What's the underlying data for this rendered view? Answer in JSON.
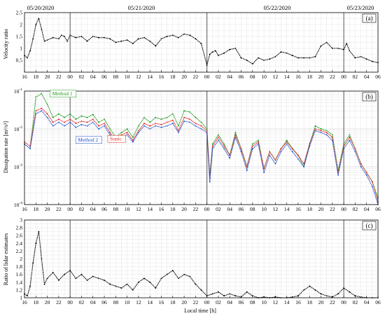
{
  "figure": {
    "dates": [
      "05/20/2020",
      "05/21/2020",
      "05/22/2020",
      "05/23/2020"
    ],
    "xlabel": "Local time [h]"
  },
  "chart_data": [
    {
      "type": "line",
      "panel_label": "(a)",
      "ylabel": "Velocity ratio",
      "ylim": [
        0,
        2.5
      ],
      "yticks": [
        0,
        0.5,
        1,
        1.5,
        2,
        2.5
      ],
      "ytick_labels": [
        "",
        "0.5",
        "1",
        "1.5",
        "2",
        "2.5"
      ],
      "xlim": [
        16,
        78
      ],
      "xticks_hours": [
        16,
        18,
        20,
        22,
        24,
        26,
        28,
        30,
        32,
        34,
        36,
        38,
        40,
        42,
        44,
        46,
        48,
        50,
        52,
        54,
        56,
        58,
        60,
        62,
        64,
        66,
        68,
        70,
        72,
        74,
        76,
        78
      ],
      "xtick_labels": [
        "16",
        "18",
        "20",
        "22",
        "00",
        "02",
        "04",
        "06",
        "08",
        "10",
        "12",
        "14",
        "16",
        "18",
        "20",
        "22",
        "00",
        "02",
        "04",
        "06",
        "08",
        "10",
        "12",
        "14",
        "16",
        "18",
        "20",
        "22",
        "00",
        "02",
        "04",
        "06"
      ],
      "day_lines_hours": [
        24,
        48,
        72
      ],
      "grid": true,
      "series": [
        {
          "color": "#000000",
          "x": [
            16,
            16.5,
            17,
            17.5,
            18,
            18.5,
            19,
            19.5,
            20,
            21,
            22,
            22.5,
            23,
            23.5,
            24,
            25,
            26,
            27,
            28,
            29,
            30,
            31,
            32,
            33,
            34,
            35,
            36,
            37,
            38,
            39,
            40,
            41,
            42,
            43,
            44,
            45,
            46,
            47,
            48,
            48.5,
            49,
            49.5,
            50,
            51,
            52,
            53,
            54,
            55,
            56,
            57,
            58,
            59,
            60,
            61,
            62,
            63,
            64,
            65,
            66,
            67,
            68,
            69,
            70,
            71,
            72,
            72.5,
            73,
            74,
            75,
            76,
            77,
            78
          ],
          "y": [
            0.7,
            0.6,
            0.9,
            1.4,
            2.0,
            2.25,
            1.8,
            1.3,
            1.35,
            1.45,
            1.4,
            1.55,
            1.5,
            1.3,
            1.55,
            1.45,
            1.5,
            1.3,
            1.5,
            1.45,
            1.45,
            1.4,
            1.25,
            1.3,
            1.35,
            1.2,
            1.4,
            1.45,
            1.3,
            1.1,
            1.4,
            1.5,
            1.55,
            1.45,
            1.6,
            1.55,
            1.4,
            1.2,
            0.3,
            0.75,
            0.85,
            0.9,
            0.7,
            0.8,
            0.95,
            1.0,
            0.6,
            0.5,
            0.35,
            0.6,
            0.5,
            0.55,
            0.65,
            0.85,
            0.8,
            0.7,
            0.6,
            0.6,
            0.6,
            0.65,
            1.1,
            1.25,
            1.0,
            1.0,
            0.95,
            1.2,
            0.9,
            0.6,
            0.65,
            0.55,
            0.45,
            0.4
          ]
        }
      ]
    },
    {
      "type": "line",
      "panel_label": "(b)",
      "ylabel": "Dissipation rate [m²/s³]",
      "yscale": "log",
      "ylim": [
        0.0001,
        0.1
      ],
      "ytick_exponents": [
        -4,
        -3,
        -2,
        -1
      ],
      "xlim": [
        16,
        78
      ],
      "day_lines_hours": [
        24,
        48,
        72
      ],
      "grid": true,
      "annotations": [
        {
          "text": "Method 1",
          "color": "#1a9a1a",
          "x": 20.5,
          "y": 0.075
        },
        {
          "text": "Method 2",
          "color": "#1f4fd1",
          "x": 25,
          "y": 0.0045
        },
        {
          "text": "Sonic",
          "color": "#e0201a",
          "x": 30.6,
          "y": 0.0048
        }
      ],
      "x": [
        16,
        17,
        18,
        19,
        20,
        21,
        22,
        23,
        24,
        25,
        26,
        27,
        28,
        29,
        30,
        31,
        32,
        33,
        34,
        35,
        36,
        37,
        38,
        39,
        40,
        41,
        42,
        43,
        44,
        45,
        46,
        47,
        48,
        48.5,
        49,
        50,
        51,
        52,
        53,
        54,
        55,
        56,
        57,
        58,
        59,
        60,
        61,
        62,
        63,
        64,
        65,
        66,
        67,
        68,
        69,
        70,
        71,
        72,
        73,
        74,
        75,
        76,
        77,
        78
      ],
      "series": [
        {
          "name": "Method 1",
          "color": "#1a9a1a",
          "y": [
            0.004,
            0.003,
            0.07,
            0.085,
            0.045,
            0.02,
            0.025,
            0.02,
            0.025,
            0.018,
            0.022,
            0.02,
            0.024,
            0.015,
            0.018,
            0.01,
            0.006,
            0.008,
            0.01,
            0.006,
            0.012,
            0.02,
            0.015,
            0.02,
            0.018,
            0.02,
            0.025,
            0.012,
            0.03,
            0.028,
            0.02,
            0.015,
            0.01,
            0.0006,
            0.004,
            0.007,
            0.004,
            0.002,
            0.008,
            0.003,
            0.001,
            0.004,
            0.005,
            0.0009,
            0.0025,
            0.0015,
            0.003,
            0.005,
            0.003,
            0.002,
            0.001,
            0.004,
            0.012,
            0.01,
            0.009,
            0.007,
            0.0008,
            0.004,
            0.007,
            0.003,
            0.0012,
            0.0007,
            0.0004,
            0.00015
          ]
        },
        {
          "name": "Sonic",
          "color": "#e0201a",
          "y": [
            0.0045,
            0.0035,
            0.03,
            0.035,
            0.025,
            0.015,
            0.018,
            0.015,
            0.018,
            0.014,
            0.016,
            0.015,
            0.018,
            0.012,
            0.014,
            0.008,
            0.005,
            0.007,
            0.008,
            0.005,
            0.009,
            0.014,
            0.012,
            0.014,
            0.013,
            0.015,
            0.017,
            0.009,
            0.02,
            0.018,
            0.014,
            0.012,
            0.009,
            0.0005,
            0.0035,
            0.006,
            0.0035,
            0.002,
            0.007,
            0.003,
            0.001,
            0.0035,
            0.0045,
            0.0009,
            0.0025,
            0.0015,
            0.003,
            0.0045,
            0.003,
            0.002,
            0.0012,
            0.004,
            0.01,
            0.009,
            0.008,
            0.006,
            0.0007,
            0.0035,
            0.006,
            0.003,
            0.0012,
            0.0007,
            0.0004,
            0.00012
          ]
        },
        {
          "name": "Method 2",
          "color": "#1f4fd1",
          "y": [
            0.004,
            0.003,
            0.025,
            0.03,
            0.02,
            0.012,
            0.015,
            0.012,
            0.015,
            0.011,
            0.013,
            0.012,
            0.015,
            0.01,
            0.012,
            0.007,
            0.0045,
            0.006,
            0.007,
            0.0045,
            0.008,
            0.012,
            0.01,
            0.012,
            0.011,
            0.012,
            0.014,
            0.008,
            0.016,
            0.015,
            0.012,
            0.01,
            0.008,
            0.0004,
            0.003,
            0.005,
            0.003,
            0.0017,
            0.006,
            0.0025,
            0.0008,
            0.003,
            0.004,
            0.0007,
            0.002,
            0.0012,
            0.0025,
            0.004,
            0.0025,
            0.0016,
            0.001,
            0.0035,
            0.009,
            0.008,
            0.007,
            0.005,
            0.0006,
            0.003,
            0.005,
            0.0025,
            0.001,
            0.0006,
            0.0003,
            0.0001
          ]
        }
      ]
    },
    {
      "type": "line",
      "panel_label": "(c)",
      "ylabel": "Ratio of lidar estimates",
      "ylim": [
        1,
        3
      ],
      "yticks": [
        1,
        1.2,
        1.4,
        1.6,
        1.8,
        2,
        2.2,
        2.4,
        2.6,
        2.8,
        3
      ],
      "ytick_labels": [
        "1",
        "1.2",
        "1.4",
        "1.6",
        "1.8",
        "2",
        "2.2",
        "2.4",
        "2.6",
        "2.8",
        "3"
      ],
      "xlim": [
        16,
        78
      ],
      "day_lines_hours": [
        24,
        48,
        72
      ],
      "grid": true,
      "series": [
        {
          "color": "#000000",
          "x": [
            16,
            16.5,
            17,
            17.5,
            18,
            18.5,
            19,
            19.5,
            20,
            21,
            22,
            23,
            24,
            25,
            26,
            27,
            28,
            29,
            30,
            31,
            32,
            33,
            34,
            35,
            36,
            37,
            38,
            39,
            40,
            41,
            42,
            43,
            44,
            45,
            46,
            47,
            48,
            49,
            50,
            51,
            52,
            53,
            54,
            55,
            56,
            57,
            58,
            59,
            60,
            61,
            62,
            63,
            64,
            65,
            66,
            67,
            68,
            69,
            70,
            71,
            72,
            73,
            74,
            75,
            76,
            77,
            78
          ],
          "y": [
            1.1,
            1.05,
            1.3,
            1.9,
            2.4,
            2.7,
            2.0,
            1.35,
            1.5,
            1.65,
            1.45,
            1.6,
            1.7,
            1.5,
            1.6,
            1.45,
            1.55,
            1.5,
            1.45,
            1.35,
            1.3,
            1.25,
            1.35,
            1.2,
            1.4,
            1.5,
            1.4,
            1.25,
            1.5,
            1.6,
            1.7,
            1.5,
            1.6,
            1.55,
            1.35,
            1.2,
            1.05,
            1.1,
            1.15,
            1.05,
            1.1,
            1.05,
            1.02,
            1.15,
            1.05,
            1.0,
            1.02,
            1.0,
            1.02,
            1.0,
            1.0,
            1.02,
            1.05,
            1.2,
            1.3,
            1.2,
            1.1,
            1.05,
            1.02,
            1.1,
            1.25,
            1.15,
            1.05,
            1.02,
            1.0,
            1.0,
            1.0
          ]
        }
      ]
    }
  ]
}
